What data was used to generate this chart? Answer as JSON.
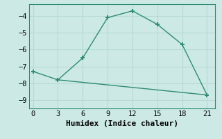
{
  "line1_x": [
    0,
    3,
    6,
    9,
    12,
    15,
    18,
    21
  ],
  "line1_y": [
    -7.3,
    -7.8,
    -6.5,
    -4.1,
    -3.7,
    -4.5,
    -5.7,
    -8.7
  ],
  "line2_x": [
    3,
    21
  ],
  "line2_y": [
    -7.8,
    -8.7
  ],
  "color": "#2e8b74",
  "bg_color": "#cce9e5",
  "grid_color": "#b8d8d4",
  "xlabel": "Humidex (Indice chaleur)",
  "ylim": [
    -9.5,
    -3.3
  ],
  "xlim": [
    -0.5,
    22.0
  ],
  "xticks": [
    0,
    3,
    6,
    9,
    12,
    15,
    18,
    21
  ],
  "yticks": [
    -9,
    -8,
    -7,
    -6,
    -5,
    -4
  ],
  "marker": "+",
  "markersize": 5,
  "markeredgewidth": 1.4,
  "linewidth": 1.0,
  "font_family": "monospace",
  "xlabel_fontsize": 8,
  "tick_fontsize": 7.5
}
